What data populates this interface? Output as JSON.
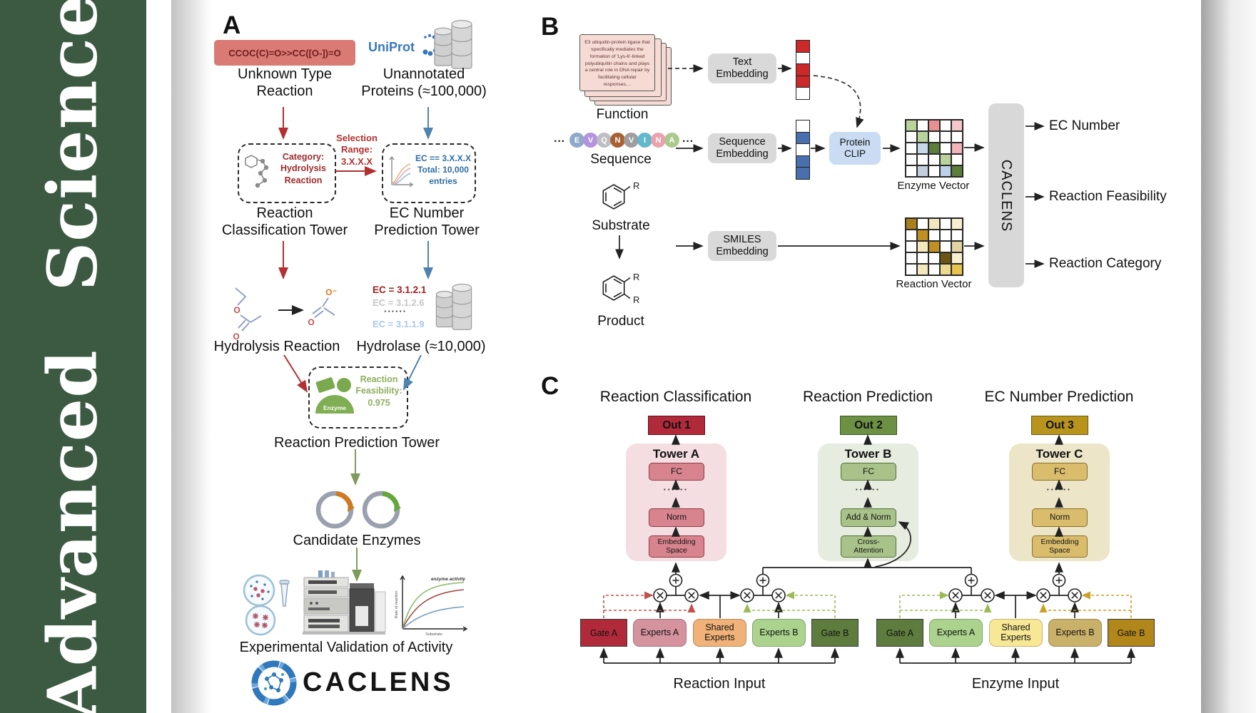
{
  "journal": {
    "vertical_title": "Advanced  Science"
  },
  "panelA": {
    "label": "A",
    "smiles_box": "CCOC(C)=O>>CC([O-])=O",
    "unknown_reaction": "Unknown Type\nReaction",
    "uniprot": "UniProt",
    "unannotated": "Unannotated\nProteins (≈100,000)",
    "selection_range": "Selection\nRange:\n3.X.X.X",
    "category_box": "Category:\nHydrolysis\nReaction",
    "ec_box": "EC == 3.X.X.X\nTotal: 10,000\nentries",
    "classification_tower": "Reaction\nClassification Tower",
    "ec_tower": "EC Number\nPrediction Tower",
    "ec_list": [
      "EC = 3.1.2.1",
      "EC = 3.1.2.6",
      "······",
      "EC = 3.1.1.9"
    ],
    "hydrolysis_label": "Hydrolysis Reaction",
    "hydrolase_label": "Hydrolase (≈10,000)",
    "enzyme_icon_label": "Enzyme",
    "feasibility": "Reaction\nFeasibility:\n0.975",
    "prediction_tower": "Reaction Prediction Tower",
    "candidate_enzymes": "Candidate Enzymes",
    "validation": "Experimental Validation of Activity",
    "logo_text": "CACLENS",
    "atoms": {
      "o": "O",
      "o_minus": "O⁻"
    },
    "kinetics_plot": {
      "annotation": "enzyme activity",
      "ylabel": "Rate of reaction",
      "xlabel": "Substrate"
    }
  },
  "panelB": {
    "label": "B",
    "function_card": "E3 ubiquitin-protein ligase that specifically mediates the formation of 'Lys-6'-linked polyubiquitin chains and plays a central role in DNA repair by facilitating cellular responses....",
    "function_label": "Function",
    "sequence_label": "Sequence",
    "sequence_letters": [
      "E",
      "V",
      "Q",
      "N",
      "V",
      "I",
      "N",
      "A"
    ],
    "sequence_colors": [
      "#8ea9c9",
      "#b393dd",
      "#bcbfc4",
      "#a85f32",
      "#9e9e9e",
      "#62b8cc",
      "#eaa3ad",
      "#abc98f"
    ],
    "ellipsis": "···",
    "substrate_label": "Substrate",
    "product_label": "Product",
    "r_label": "R",
    "text_embedding": "Text\nEmbedding",
    "sequence_embedding": "Sequence\nEmbedding",
    "smiles_embedding": "SMILES\nEmbedding",
    "protein_clip": "Protein\nCLIP",
    "text_vector": [
      "#cc2a2a",
      "#ffffff",
      "#cc2a2a",
      "#cc2a2a",
      "#ffffff"
    ],
    "sequence_vector": [
      "#ffffff",
      "#4a6fae",
      "#ffffff",
      "#4a6fae",
      "#4a6fae"
    ],
    "enzyme_vector_label": "Enzyme Vector",
    "reaction_vector_label": "Reaction Vector",
    "enzyme_matrix": [
      "#b8d49a",
      "#ffffff",
      "#e89090",
      "#ffffff",
      "#f5c6cc",
      "#ffffff",
      "#b8d49a",
      "#ffffff",
      "#ffffff",
      "#ffffff",
      "#ffffff",
      "#c8d8ec",
      "#5d7d3b",
      "#ffffff",
      "#f0b4ba",
      "#ffffff",
      "#ffffff",
      "#ffffff",
      "#b8d49a",
      "#ffffff",
      "#ffffff",
      "#c3cedd",
      "#ffffff",
      "#bcd0e8",
      "#5d7d3b"
    ],
    "reaction_matrix": [
      "#a8801a",
      "#ffffff",
      "#f2e7bd",
      "#ffffff",
      "#f7efcf",
      "#ffffff",
      "#c09020",
      "#ffffff",
      "#ffffff",
      "#ffffff",
      "#ffffff",
      "#f2e7bd",
      "#c09020",
      "#ffffff",
      "#e3d3a2",
      "#ffffff",
      "#ffffff",
      "#ffffff",
      "#6b5513",
      "#f7efcf",
      "#ffffff",
      "#f2e7bd",
      "#ffffff",
      "#eeda8e",
      "#e6c44e"
    ],
    "caclens_bar": "CACLENS",
    "outputs": [
      "EC Number",
      "Reaction Feasibility",
      "Reaction Category"
    ]
  },
  "panelC": {
    "label": "C",
    "columns": [
      {
        "title": "Reaction Classification",
        "out": "Out 1",
        "tower": "Tower A",
        "layers": [
          "FC",
          "······",
          "Norm",
          "Embedding\nSpace"
        ]
      },
      {
        "title": "Reaction Prediction",
        "out": "Out 2",
        "tower": "Tower B",
        "layers": [
          "FC",
          "······",
          "Add & Norm",
          "Cross-\nAttention"
        ]
      },
      {
        "title": "EC Number Prediction",
        "out": "Out 3",
        "tower": "Tower C",
        "layers": [
          "FC",
          "······",
          "Norm",
          "Embedding\nSpace"
        ]
      }
    ],
    "reaction_group": {
      "label": "Reaction Input",
      "boxes": [
        "Gate A",
        "Experts A",
        "Shared\nExperts",
        "Experts B",
        "Gate B"
      ]
    },
    "enzyme_group": {
      "label": "Enzyme Input",
      "boxes": [
        "Gate A",
        "Experts A",
        "Shared\nExperts",
        "Experts B",
        "Gate B"
      ]
    }
  },
  "colors": {
    "sidebar_green": "#3c5a41",
    "uniprot_blue": "#3878be",
    "red_arrow": "#b23030",
    "blue_arrow": "#4e82b0",
    "green_arrow": "#7d9c5b",
    "smiles_box_bg": "#d97a74"
  }
}
